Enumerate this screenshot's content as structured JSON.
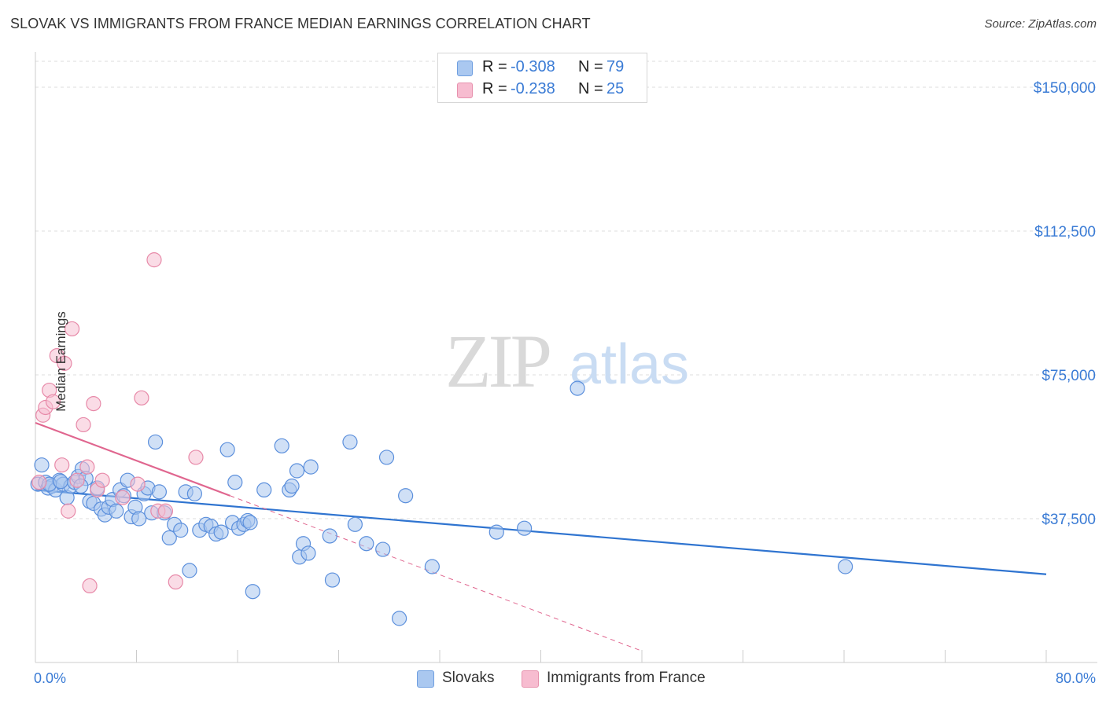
{
  "header": {
    "title": "SLOVAK VS IMMIGRANTS FROM FRANCE MEDIAN EARNINGS CORRELATION CHART",
    "source": "Source: ZipAtlas.com"
  },
  "watermark": {
    "zip": "ZIP",
    "atlas": "atlas"
  },
  "legend": {
    "rows": [
      {
        "r_label": "R =",
        "r_value": "-0.308",
        "n_label": "N =",
        "n_value": "79",
        "color": "#aac8f0"
      },
      {
        "r_label": "R =",
        "r_value": "-0.238",
        "n_label": "N =",
        "n_value": "25",
        "color": "#f7bcd0"
      }
    ],
    "bottom": [
      "Slovaks",
      "Immigrants from France"
    ]
  },
  "colors": {
    "blue_fill": "#a9c6ee",
    "blue_stroke": "#5b8fdc",
    "blue_line": "#2f74d0",
    "pink_fill": "#f6c0d2",
    "pink_stroke": "#e789a8",
    "pink_line": "#e0668f",
    "axis_text": "#3a7bd5",
    "grid": "#dddddd"
  },
  "chart_data": {
    "type": "scatter",
    "title": "SLOVAK VS IMMIGRANTS FROM FRANCE MEDIAN EARNINGS CORRELATION CHART",
    "xlabel": "",
    "ylabel": "Median Earnings",
    "xlim": [
      0,
      80
    ],
    "ylim": [
      0,
      158000
    ],
    "x_tick_labels": [
      "0.0%",
      "80.0%"
    ],
    "y_ticks": [
      37500,
      75000,
      112500,
      150000
    ],
    "y_tick_labels": [
      "$37,500",
      "$75,000",
      "$112,500",
      "$150,000"
    ],
    "series": [
      {
        "name": "Slovaks",
        "points": [
          [
            0.2,
            46500
          ],
          [
            0.5,
            51500
          ],
          [
            0.8,
            47000
          ],
          [
            1.0,
            45500
          ],
          [
            1.3,
            46000
          ],
          [
            1.6,
            45000
          ],
          [
            1.9,
            47500
          ],
          [
            2.2,
            46500
          ],
          [
            2.5,
            43000
          ],
          [
            2.8,
            46000
          ],
          [
            3.1,
            47000
          ],
          [
            3.4,
            48500
          ],
          [
            3.7,
            50500
          ],
          [
            4.0,
            48000
          ],
          [
            4.3,
            42000
          ],
          [
            4.6,
            41500
          ],
          [
            4.9,
            45500
          ],
          [
            5.2,
            40000
          ],
          [
            5.5,
            38500
          ],
          [
            5.8,
            40500
          ],
          [
            6.1,
            42500
          ],
          [
            6.4,
            39500
          ],
          [
            6.7,
            45000
          ],
          [
            7.0,
            43500
          ],
          [
            7.3,
            47500
          ],
          [
            7.6,
            38000
          ],
          [
            7.9,
            40500
          ],
          [
            8.2,
            37500
          ],
          [
            8.6,
            44000
          ],
          [
            8.9,
            45500
          ],
          [
            9.2,
            39000
          ],
          [
            9.5,
            57500
          ],
          [
            9.8,
            44500
          ],
          [
            10.2,
            39000
          ],
          [
            10.6,
            32500
          ],
          [
            11.0,
            36000
          ],
          [
            11.5,
            34500
          ],
          [
            11.9,
            44500
          ],
          [
            12.2,
            24000
          ],
          [
            12.6,
            44000
          ],
          [
            13.0,
            34500
          ],
          [
            13.5,
            36000
          ],
          [
            13.9,
            35500
          ],
          [
            14.3,
            33500
          ],
          [
            14.7,
            34000
          ],
          [
            15.2,
            55500
          ],
          [
            15.6,
            36500
          ],
          [
            15.8,
            47000
          ],
          [
            16.1,
            35000
          ],
          [
            16.5,
            36000
          ],
          [
            16.8,
            37000
          ],
          [
            17.0,
            36500
          ],
          [
            17.2,
            18500
          ],
          [
            18.1,
            45000
          ],
          [
            19.5,
            56500
          ],
          [
            20.1,
            45000
          ],
          [
            20.3,
            46000
          ],
          [
            20.7,
            50000
          ],
          [
            20.9,
            27500
          ],
          [
            21.2,
            31000
          ],
          [
            21.8,
            51000
          ],
          [
            21.6,
            28500
          ],
          [
            23.3,
            33000
          ],
          [
            23.5,
            21500
          ],
          [
            24.9,
            57500
          ],
          [
            25.3,
            36000
          ],
          [
            26.2,
            31000
          ],
          [
            27.5,
            29500
          ],
          [
            27.8,
            53500
          ],
          [
            28.8,
            11500
          ],
          [
            29.3,
            43500
          ],
          [
            31.4,
            25000
          ],
          [
            36.5,
            34000
          ],
          [
            38.7,
            35000
          ],
          [
            42.9,
            71500
          ],
          [
            64.1,
            25000
          ],
          [
            1.1,
            46500
          ],
          [
            2.0,
            47200
          ],
          [
            3.6,
            46000
          ]
        ]
      },
      {
        "name": "Immigrants from France",
        "points": [
          [
            0.6,
            64500
          ],
          [
            0.8,
            66500
          ],
          [
            1.1,
            71000
          ],
          [
            1.4,
            68000
          ],
          [
            1.7,
            80000
          ],
          [
            2.1,
            51500
          ],
          [
            2.3,
            78000
          ],
          [
            2.6,
            39500
          ],
          [
            2.9,
            87000
          ],
          [
            3.3,
            47500
          ],
          [
            3.8,
            62000
          ],
          [
            4.1,
            51000
          ],
          [
            4.3,
            20000
          ],
          [
            4.6,
            67500
          ],
          [
            4.9,
            45000
          ],
          [
            5.3,
            47500
          ],
          [
            6.9,
            43000
          ],
          [
            8.1,
            46500
          ],
          [
            8.4,
            69000
          ],
          [
            9.4,
            105000
          ],
          [
            9.7,
            39500
          ],
          [
            10.3,
            39500
          ],
          [
            11.1,
            21000
          ],
          [
            12.7,
            53500
          ],
          [
            0.3,
            47000
          ]
        ]
      }
    ],
    "trend_lines": [
      {
        "series": "Slovaks",
        "x": [
          0,
          80
        ],
        "y": [
          45000,
          23000
        ],
        "style": "solid"
      },
      {
        "series": "Immigrants from France",
        "x": [
          0,
          15.4
        ],
        "y": [
          62500,
          43500
        ],
        "style": "solid"
      },
      {
        "series": "Immigrants from France",
        "x": [
          15.4,
          48.0
        ],
        "y": [
          43500,
          3000
        ],
        "style": "dashed"
      }
    ]
  }
}
